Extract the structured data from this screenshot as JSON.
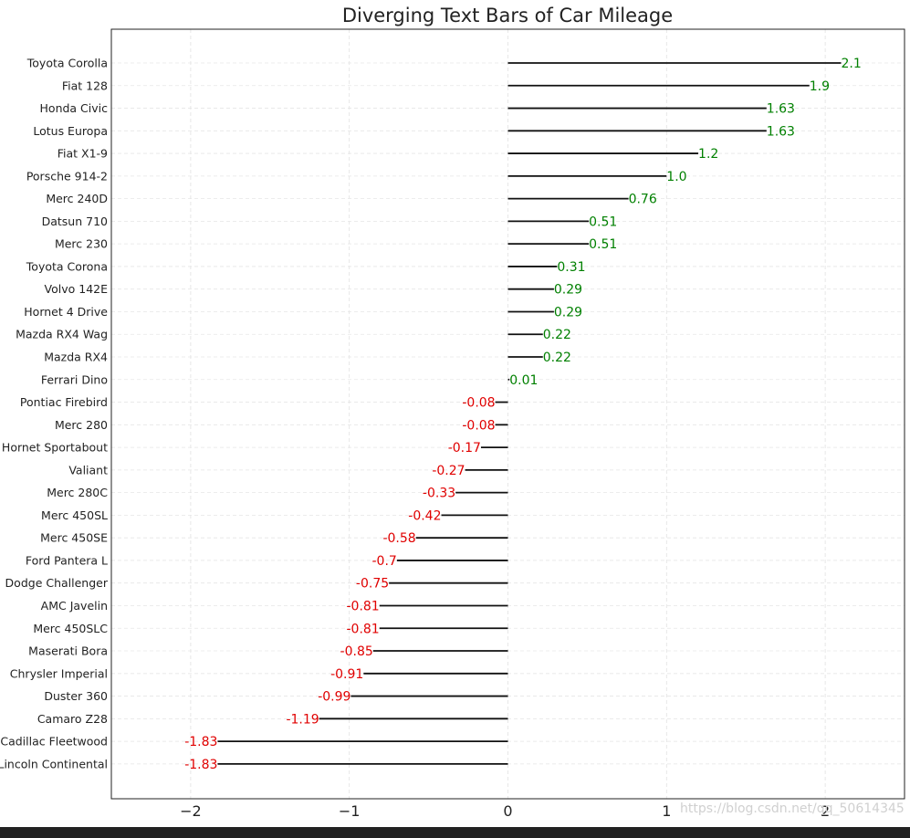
{
  "chart_data": {
    "type": "bar",
    "orientation": "horizontal",
    "title": "Diverging Text Bars of Car Mileage",
    "xlabel": "",
    "ylabel": "",
    "xlim": [
      -2.5,
      2.5
    ],
    "xticks": [
      -2,
      -1,
      0,
      1,
      2
    ],
    "xtick_labels": [
      "−2",
      "−1",
      "0",
      "1",
      "2"
    ],
    "grid": true,
    "positive_color": "#008000",
    "negative_color": "#e00000",
    "bar_color": "#111111",
    "categories": [
      "Toyota Corolla",
      "Fiat 128",
      "Honda Civic",
      "Lotus Europa",
      "Fiat X1-9",
      "Porsche 914-2",
      "Merc 240D",
      "Datsun 710",
      "Merc 230",
      "Toyota Corona",
      "Volvo 142E",
      "Hornet 4 Drive",
      "Mazda RX4 Wag",
      "Mazda RX4",
      "Ferrari Dino",
      "Pontiac Firebird",
      "Merc 280",
      "Hornet Sportabout",
      "Valiant",
      "Merc 280C",
      "Merc 450SL",
      "Merc 450SE",
      "Ford Pantera L",
      "Dodge Challenger",
      "AMC Javelin",
      "Merc 450SLC",
      "Maserati Bora",
      "Chrysler Imperial",
      "Duster 360",
      "Camaro Z28",
      "Cadillac Fleetwood",
      "Lincoln Continental"
    ],
    "values": [
      2.1,
      1.9,
      1.63,
      1.63,
      1.2,
      1.0,
      0.76,
      0.51,
      0.51,
      0.31,
      0.29,
      0.29,
      0.22,
      0.22,
      0.01,
      -0.08,
      -0.08,
      -0.17,
      -0.27,
      -0.33,
      -0.42,
      -0.58,
      -0.7,
      -0.75,
      -0.81,
      -0.81,
      -0.85,
      -0.91,
      -0.99,
      -1.19,
      -1.83,
      -1.83
    ],
    "value_labels": [
      "2.1",
      "1.9",
      "1.63",
      "1.63",
      "1.2",
      "1.0",
      "0.76",
      "0.51",
      "0.51",
      "0.31",
      "0.29",
      "0.29",
      "0.22",
      "0.22",
      "0.01",
      "-0.08",
      "-0.08",
      "-0.17",
      "-0.27",
      "-0.33",
      "-0.42",
      "-0.58",
      "-0.7",
      "-0.75",
      "-0.81",
      "-0.81",
      "-0.85",
      "-0.91",
      "-0.99",
      "-1.19",
      "-1.83",
      "-1.83"
    ]
  },
  "watermark": "https://blog.csdn.net/qq_50614345"
}
